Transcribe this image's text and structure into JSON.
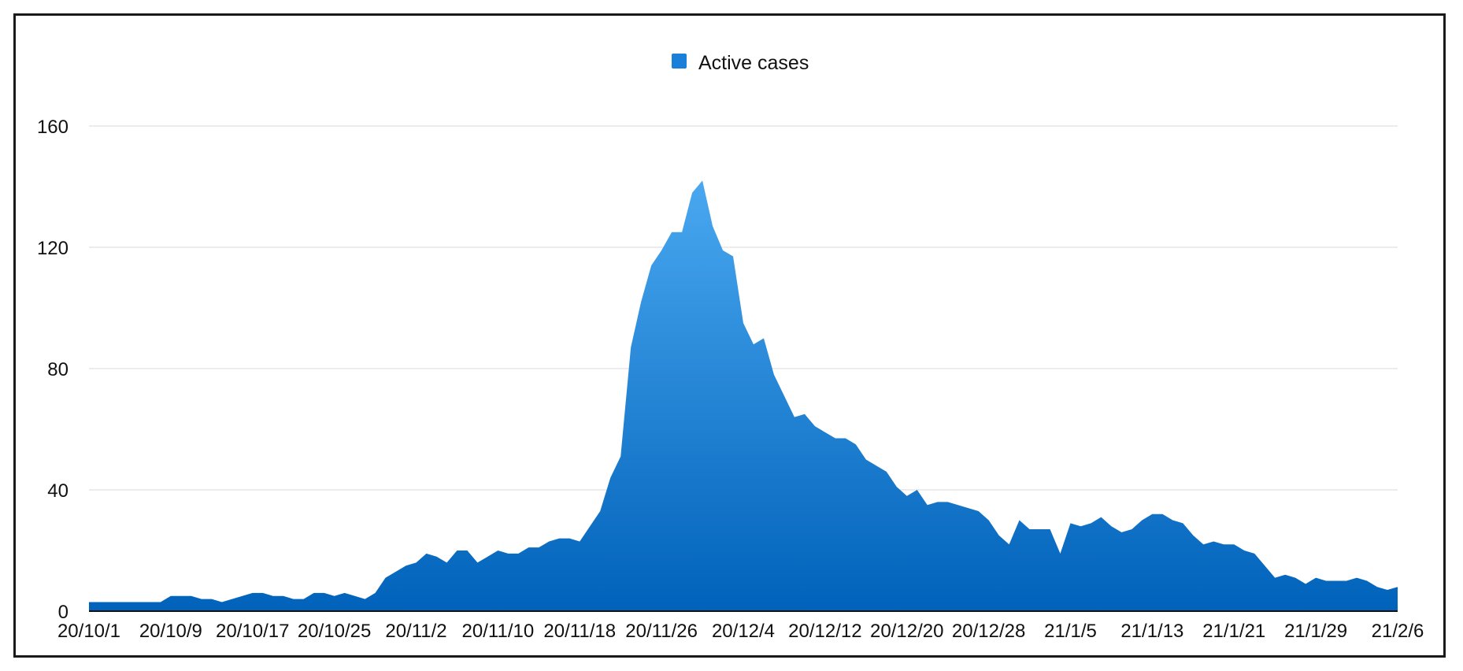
{
  "colors": {
    "area_top": "#4aa8f0",
    "area_bottom": "#0062ba",
    "legend_swatch": "#1a7fd8",
    "grid": "#d9d9d9",
    "axis": "#111111"
  },
  "chart_data": {
    "type": "area",
    "title": "",
    "xlabel": "",
    "ylabel": "",
    "ylim": [
      0,
      160
    ],
    "yticks": [
      0,
      40,
      80,
      120,
      160
    ],
    "grid": true,
    "legend_position": "top-center",
    "x_tick_labels": [
      "20/10/1",
      "20/10/9",
      "20/10/17",
      "20/10/25",
      "20/11/2",
      "20/11/10",
      "20/11/18",
      "20/11/26",
      "20/12/4",
      "20/12/12",
      "20/12/20",
      "20/12/28",
      "21/1/5",
      "21/1/13",
      "21/1/21",
      "21/1/29",
      "21/2/6"
    ],
    "x": [
      "20/10/1",
      "20/10/2",
      "20/10/3",
      "20/10/4",
      "20/10/5",
      "20/10/6",
      "20/10/7",
      "20/10/8",
      "20/10/9",
      "20/10/10",
      "20/10/11",
      "20/10/12",
      "20/10/13",
      "20/10/14",
      "20/10/15",
      "20/10/16",
      "20/10/17",
      "20/10/18",
      "20/10/19",
      "20/10/20",
      "20/10/21",
      "20/10/22",
      "20/10/23",
      "20/10/24",
      "20/10/25",
      "20/10/26",
      "20/10/27",
      "20/10/28",
      "20/10/29",
      "20/10/30",
      "20/10/31",
      "20/11/1",
      "20/11/2",
      "20/11/3",
      "20/11/4",
      "20/11/5",
      "20/11/6",
      "20/11/7",
      "20/11/8",
      "20/11/9",
      "20/11/10",
      "20/11/11",
      "20/11/12",
      "20/11/13",
      "20/11/14",
      "20/11/15",
      "20/11/16",
      "20/11/17",
      "20/11/18",
      "20/11/19",
      "20/11/20",
      "20/11/21",
      "20/11/22",
      "20/11/23",
      "20/11/24",
      "20/11/25",
      "20/11/26",
      "20/11/27",
      "20/11/28",
      "20/11/29",
      "20/11/30",
      "20/12/1",
      "20/12/2",
      "20/12/3",
      "20/12/4",
      "20/12/5",
      "20/12/6",
      "20/12/7",
      "20/12/8",
      "20/12/9",
      "20/12/10",
      "20/12/11",
      "20/12/12",
      "20/12/13",
      "20/12/14",
      "20/12/15",
      "20/12/16",
      "20/12/17",
      "20/12/18",
      "20/12/19",
      "20/12/20",
      "20/12/21",
      "20/12/22",
      "20/12/23",
      "20/12/24",
      "20/12/25",
      "20/12/26",
      "20/12/27",
      "20/12/28",
      "20/12/29",
      "20/12/30",
      "20/12/31",
      "21/1/1",
      "21/1/2",
      "21/1/3",
      "21/1/4",
      "21/1/5",
      "21/1/6",
      "21/1/7",
      "21/1/8",
      "21/1/9",
      "21/1/10",
      "21/1/11",
      "21/1/12",
      "21/1/13",
      "21/1/14",
      "21/1/15",
      "21/1/16",
      "21/1/17",
      "21/1/18",
      "21/1/19",
      "21/1/20",
      "21/1/21",
      "21/1/22",
      "21/1/23",
      "21/1/24",
      "21/1/25",
      "21/1/26",
      "21/1/27",
      "21/1/28",
      "21/1/29",
      "21/1/30",
      "21/1/31",
      "21/2/1",
      "21/2/2",
      "21/2/3",
      "21/2/4",
      "21/2/5",
      "21/2/6"
    ],
    "series": [
      {
        "name": "Active cases",
        "values": [
          3,
          3,
          3,
          3,
          3,
          3,
          3,
          3,
          5,
          5,
          5,
          4,
          4,
          3,
          4,
          5,
          6,
          6,
          5,
          5,
          4,
          4,
          6,
          6,
          5,
          6,
          5,
          4,
          6,
          11,
          13,
          15,
          16,
          19,
          18,
          16,
          20,
          20,
          16,
          18,
          20,
          19,
          19,
          21,
          21,
          23,
          24,
          24,
          23,
          28,
          33,
          44,
          51,
          87,
          102,
          114,
          119,
          125,
          125,
          138,
          142,
          127,
          119,
          117,
          95,
          88,
          90,
          78,
          71,
          64,
          65,
          61,
          59,
          57,
          57,
          55,
          50,
          48,
          46,
          41,
          38,
          40,
          35,
          36,
          36,
          35,
          34,
          33,
          30,
          25,
          22,
          30,
          27,
          27,
          27,
          19,
          29,
          28,
          29,
          31,
          28,
          26,
          27,
          30,
          32,
          32,
          30,
          29,
          25,
          22,
          23,
          22,
          22,
          20,
          19,
          15,
          11,
          12,
          11,
          9,
          11,
          10,
          10,
          10,
          11,
          10,
          8,
          7,
          8
        ]
      }
    ]
  }
}
